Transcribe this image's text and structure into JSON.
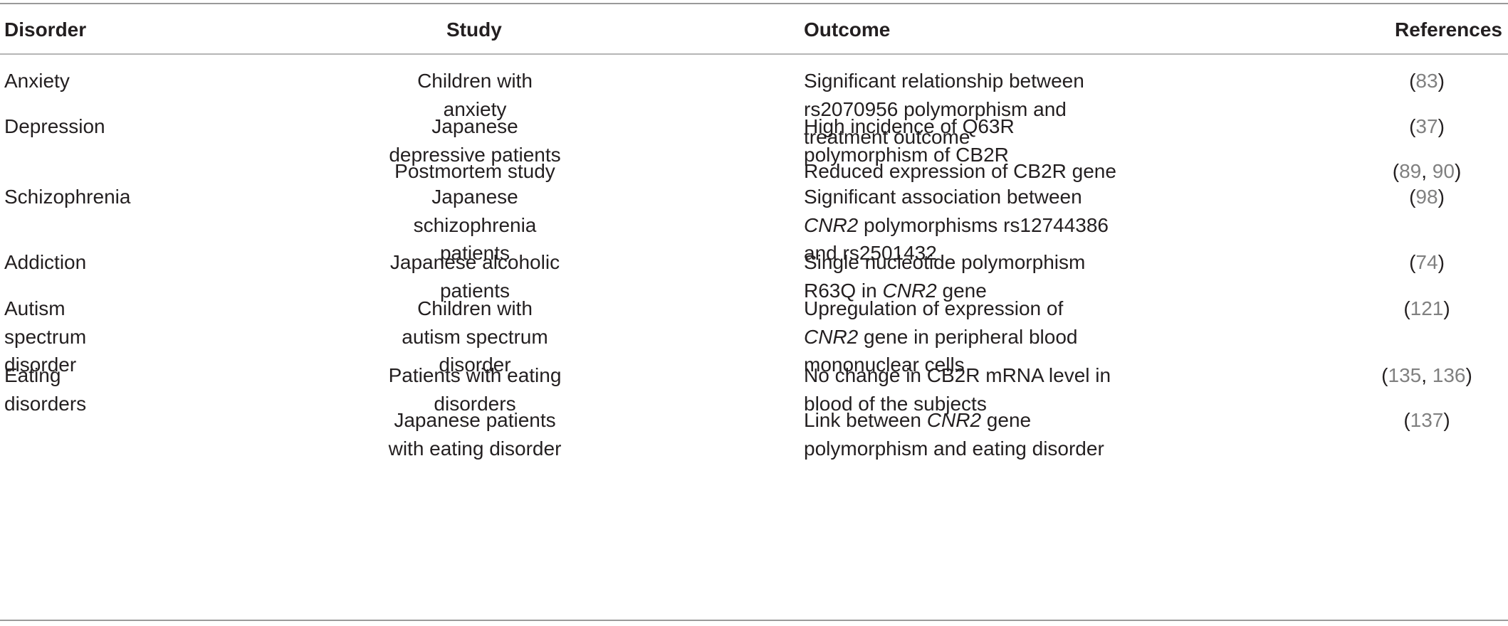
{
  "headers": {
    "disorder": "Disorder",
    "study": "Study",
    "outcome": "Outcome",
    "references": "References"
  },
  "rows": [
    {
      "disorder": [
        "Anxiety"
      ],
      "study": [
        "Children with",
        "anxiety"
      ],
      "outcome": [
        [
          "Significant relationship between"
        ],
        [
          "rs2070956 polymorphism and"
        ],
        [
          "treatment outcome"
        ]
      ],
      "refs": [
        "83"
      ]
    },
    {
      "disorder": [
        "Depression"
      ],
      "study": [
        "Japanese",
        "depressive patients"
      ],
      "outcome": [
        [
          "High incidence of Q63R"
        ],
        [
          "polymorphism of CB2R"
        ]
      ],
      "refs": [
        "37"
      ]
    },
    {
      "disorder": [],
      "study": [
        "Postmortem study"
      ],
      "outcome": [
        [
          "Reduced expression of CB2R gene"
        ]
      ],
      "refs": [
        "89",
        "90"
      ]
    },
    {
      "disorder": [
        "Schizophrenia"
      ],
      "study": [
        "Japanese",
        "schizophrenia",
        "patients"
      ],
      "outcome": [
        [
          "Significant association between"
        ],
        [
          "CNR2",
          " polymorphisms rs12744386"
        ],
        [
          "and rs2501432"
        ]
      ],
      "refs": [
        "98"
      ]
    },
    {
      "disorder": [
        "Addiction"
      ],
      "study": [
        "Japanese alcoholic",
        "patients"
      ],
      "outcome": [
        [
          "Single nucleotide polymorphism"
        ],
        [
          "R63Q in ",
          "CNR2",
          " gene"
        ]
      ],
      "refs": [
        "74"
      ]
    },
    {
      "disorder": [
        "Autism",
        "spectrum",
        "disorder"
      ],
      "study": [
        "Children with",
        "autism spectrum",
        "disorder"
      ],
      "outcome": [
        [
          "Upregulation of expression of"
        ],
        [
          "CNR2",
          " gene in peripheral blood"
        ],
        [
          "mononuclear cells"
        ]
      ],
      "refs": [
        "121"
      ]
    },
    {
      "disorder": [
        "Eating",
        "disorders"
      ],
      "study": [
        "Patients with eating",
        "disorders"
      ],
      "outcome": [
        [
          "No change in CB2R mRNA level in"
        ],
        [
          "blood of the subjects"
        ]
      ],
      "refs": [
        "135",
        "136"
      ]
    },
    {
      "disorder": [],
      "study": [
        "Japanese patients",
        "with eating disorder"
      ],
      "outcome": [
        [
          "Link between ",
          "CNR2",
          " gene"
        ],
        [
          "polymorphism and eating disorder"
        ]
      ],
      "refs": [
        "137"
      ]
    }
  ],
  "italic_terms": [
    "CNR2"
  ]
}
